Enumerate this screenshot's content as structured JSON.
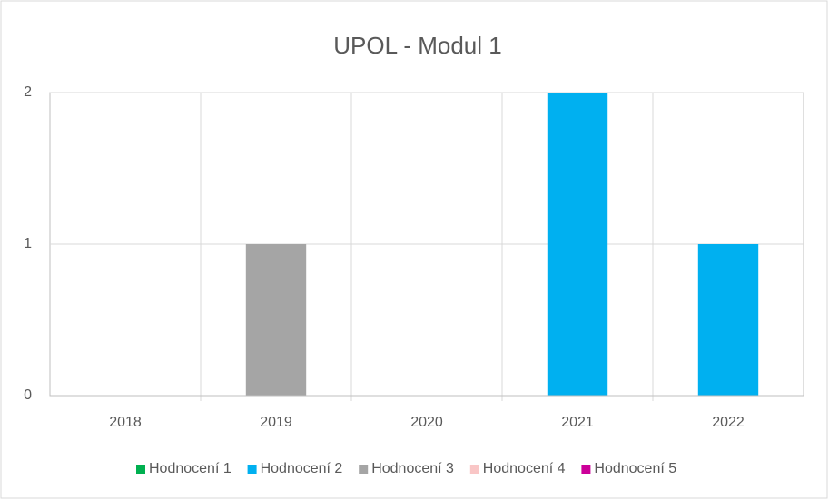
{
  "chart_data": {
    "type": "bar",
    "stacked": true,
    "title": "UPOL - Modul 1",
    "categories": [
      "2018",
      "2019",
      "2020",
      "2021",
      "2022"
    ],
    "series": [
      {
        "name": "Hodnocení 1",
        "color": "#00b050",
        "values": [
          0,
          0,
          0,
          0,
          0
        ]
      },
      {
        "name": "Hodnocení 2",
        "color": "#00b0f0",
        "values": [
          0,
          0,
          0,
          2,
          1
        ]
      },
      {
        "name": "Hodnocení 3",
        "color": "#a5a5a5",
        "values": [
          0,
          1,
          0,
          0,
          0
        ]
      },
      {
        "name": "Hodnocení 4",
        "color": "#f9c6c6",
        "values": [
          0,
          0,
          0,
          0,
          0
        ]
      },
      {
        "name": "Hodnocení 5",
        "color": "#cc0099",
        "values": [
          0,
          0,
          0,
          0,
          0
        ]
      }
    ],
    "ylim": [
      0,
      2
    ],
    "yticks": [
      0,
      1,
      2
    ],
    "grid": true,
    "legend": "bottom"
  }
}
